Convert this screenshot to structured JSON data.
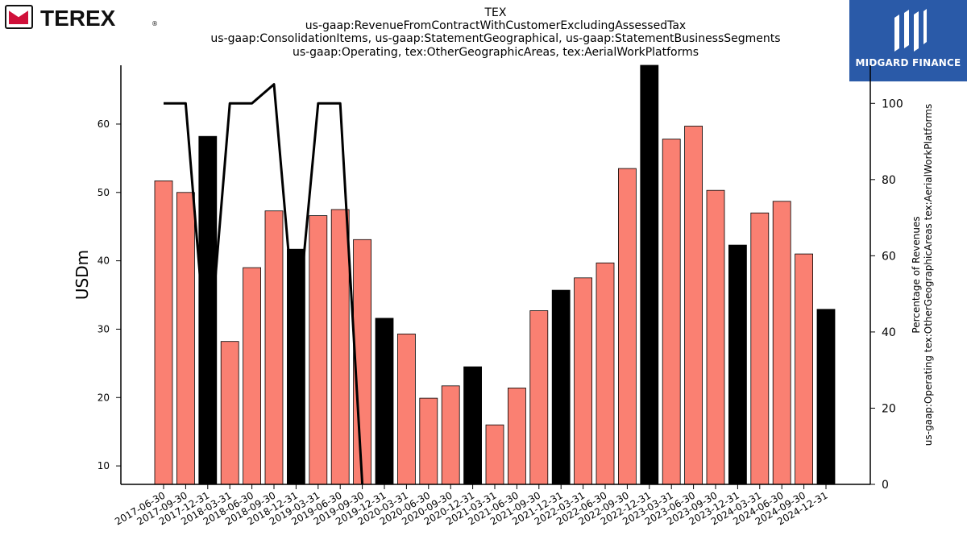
{
  "logos": {
    "left": {
      "text": "TEREX",
      "mark": "®",
      "color": "#111111",
      "accent": "#d0103a"
    },
    "right": {
      "text": "MIDGARD FINANCE",
      "background": "#2a5aa8"
    }
  },
  "chart_data": {
    "type": "bar",
    "title_lines": [
      "TEX",
      "us-gaap:RevenueFromContractWithCustomerExcludingAssessedTax",
      "us-gaap:ConsolidationItems, us-gaap:StatementGeographical, us-gaap:StatementBusinessSegments",
      "us-gaap:Operating, tex:OtherGeographicAreas, tex:AerialWorkPlatforms"
    ],
    "ylabel": "USDm",
    "y2label_lines": [
      "Percentage of Revenues",
      "us-gaap:Operating tex:OtherGeographicAreas tex:AerialWorkPlatforms"
    ],
    "categories": [
      "2017-06-30",
      "2017-09-30",
      "2017-12-31",
      "2018-03-31",
      "2018-06-30",
      "2018-09-30",
      "2018-12-31",
      "2019-03-31",
      "2019-06-30",
      "2019-09-30",
      "2019-12-31",
      "2020-03-31",
      "2020-06-30",
      "2020-09-30",
      "2020-12-31",
      "2021-03-31",
      "2021-06-30",
      "2021-09-30",
      "2021-12-31",
      "2022-03-31",
      "2022-06-30",
      "2022-09-30",
      "2022-12-31",
      "2023-03-31",
      "2023-06-30",
      "2023-09-30",
      "2023-12-31",
      "2024-03-31",
      "2024-06-30",
      "2024-09-30",
      "2024-12-31"
    ],
    "bars": [
      {
        "x": "2017-06-30",
        "value": 51.7,
        "q4": false
      },
      {
        "x": "2017-09-30",
        "value": 50.0,
        "q4": false
      },
      {
        "x": "2017-12-31",
        "value": 58.2,
        "q4": true
      },
      {
        "x": "2018-03-31",
        "value": 28.2,
        "q4": false
      },
      {
        "x": "2018-06-30",
        "value": 39.0,
        "q4": false
      },
      {
        "x": "2018-09-30",
        "value": 47.3,
        "q4": false
      },
      {
        "x": "2018-12-31",
        "value": 41.7,
        "q4": true
      },
      {
        "x": "2019-03-31",
        "value": 46.6,
        "q4": false
      },
      {
        "x": "2019-06-30",
        "value": 47.5,
        "q4": false
      },
      {
        "x": "2019-09-30",
        "value": 43.1,
        "q4": false
      },
      {
        "x": "2019-12-31",
        "value": 31.6,
        "q4": true
      },
      {
        "x": "2020-03-31",
        "value": 29.3,
        "q4": false
      },
      {
        "x": "2020-06-30",
        "value": 19.9,
        "q4": false
      },
      {
        "x": "2020-09-30",
        "value": 21.7,
        "q4": false
      },
      {
        "x": "2020-12-31",
        "value": 24.5,
        "q4": true
      },
      {
        "x": "2021-03-31",
        "value": 16.0,
        "q4": false
      },
      {
        "x": "2021-06-30",
        "value": 21.4,
        "q4": false
      },
      {
        "x": "2021-09-30",
        "value": 32.7,
        "q4": false
      },
      {
        "x": "2021-12-31",
        "value": 35.7,
        "q4": true
      },
      {
        "x": "2022-03-31",
        "value": 37.5,
        "q4": false
      },
      {
        "x": "2022-06-30",
        "value": 39.7,
        "q4": false
      },
      {
        "x": "2022-09-30",
        "value": 53.5,
        "q4": false
      },
      {
        "x": "2022-12-31",
        "value": 68.6,
        "q4": true
      },
      {
        "x": "2023-03-31",
        "value": 57.8,
        "q4": false
      },
      {
        "x": "2023-06-30",
        "value": 59.7,
        "q4": false
      },
      {
        "x": "2023-09-30",
        "value": 50.3,
        "q4": false
      },
      {
        "x": "2023-12-31",
        "value": 42.3,
        "q4": true
      },
      {
        "x": "2024-03-31",
        "value": 47.0,
        "q4": false
      },
      {
        "x": "2024-06-30",
        "value": 48.7,
        "q4": false
      },
      {
        "x": "2024-09-30",
        "value": 41.0,
        "q4": false
      },
      {
        "x": "2024-12-31",
        "value": 32.9,
        "q4": true
      }
    ],
    "line": {
      "axis": "right",
      "color": "#000000",
      "points": [
        {
          "x": "2017-06-30",
          "value": 100
        },
        {
          "x": "2017-09-30",
          "value": 100
        },
        {
          "x": "2017-12-31",
          "value": 30
        },
        {
          "x": "2018-03-31",
          "value": 100
        },
        {
          "x": "2018-06-30",
          "value": 100
        },
        {
          "x": "2018-09-30",
          "value": 105
        },
        {
          "x": "2018-12-31",
          "value": 38
        },
        {
          "x": "2019-03-31",
          "value": 100
        },
        {
          "x": "2019-06-30",
          "value": 100
        },
        {
          "x": "2019-09-30",
          "value": 0
        }
      ]
    },
    "y_left": {
      "min": 7.3,
      "max": 68.6,
      "ticks": [
        10,
        20,
        30,
        40,
        50,
        60
      ]
    },
    "y_right": {
      "min": 0,
      "max": 110,
      "ticks": [
        0,
        20,
        40,
        60,
        80,
        100
      ]
    },
    "colors": {
      "bar": "#fa8072",
      "bar_q4": "#000000",
      "bar_edge": "#000000",
      "line": "#000000"
    },
    "grid": false,
    "legend": "none"
  }
}
